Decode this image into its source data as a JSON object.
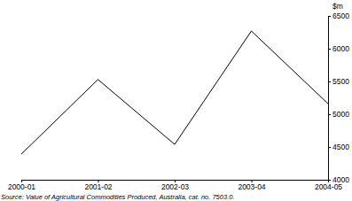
{
  "chart_data": {
    "type": "line",
    "y_label": "$m",
    "source": "Source: Value of Agricultural Commodities Produced, Australia, cat. no. 7503.0.",
    "categories": [
      "2000-01",
      "2001-02",
      "2002-03",
      "2003-04",
      "2004-05"
    ],
    "values": [
      4390,
      5530,
      4540,
      6270,
      5160
    ],
    "color": "#000000",
    "ylim": [
      4000,
      6500
    ],
    "yticks": [
      4000,
      4500,
      5000,
      5500,
      6000,
      6500
    ],
    "grid": false
  }
}
